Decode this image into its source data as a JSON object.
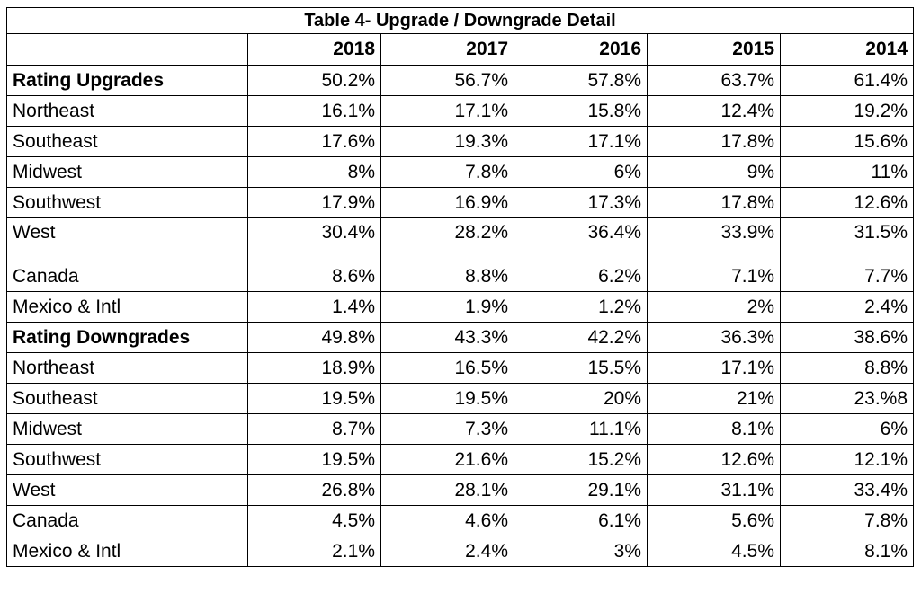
{
  "table": {
    "title": "Table 4- Upgrade / Downgrade Detail",
    "columns": [
      "2018",
      "2017",
      "2016",
      "2015",
      "2014"
    ],
    "rows": [
      {
        "label": "Rating Upgrades",
        "bold": true,
        "values": [
          "50.2%",
          "56.7%",
          "57.8%",
          "63.7%",
          "61.4%"
        ]
      },
      {
        "label": "Northeast",
        "values": [
          "16.1%",
          "17.1%",
          "15.8%",
          "12.4%",
          "19.2%"
        ]
      },
      {
        "label": "Southeast",
        "values": [
          "17.6%",
          "19.3%",
          "17.1%",
          "17.8%",
          "15.6%"
        ]
      },
      {
        "label": "Midwest",
        "values": [
          "8%",
          "7.8%",
          "6%",
          "9%",
          "11%"
        ]
      },
      {
        "label": "Southwest",
        "values": [
          "17.9%",
          "16.9%",
          "17.3%",
          "17.8%",
          "12.6%"
        ]
      },
      {
        "label": "West",
        "tall": true,
        "values": [
          "30.4%",
          "28.2%",
          "36.4%",
          "33.9%",
          "31.5%"
        ]
      },
      {
        "label": "Canada",
        "values": [
          "8.6%",
          "8.8%",
          "6.2%",
          "7.1%",
          "7.7%"
        ]
      },
      {
        "label": "Mexico & Intl",
        "values": [
          "1.4%",
          "1.9%",
          "1.2%",
          "2%",
          "2.4%"
        ]
      },
      {
        "label": "Rating Downgrades",
        "bold": true,
        "values": [
          "49.8%",
          "43.3%",
          "42.2%",
          "36.3%",
          "38.6%"
        ]
      },
      {
        "label": "Northeast",
        "values": [
          "18.9%",
          "16.5%",
          "15.5%",
          "17.1%",
          "8.8%"
        ]
      },
      {
        "label": "Southeast",
        "values": [
          "19.5%",
          "19.5%",
          "20%",
          "21%",
          "23.%8"
        ]
      },
      {
        "label": "Midwest",
        "values": [
          "8.7%",
          "7.3%",
          "11.1%",
          "8.1%",
          "6%"
        ]
      },
      {
        "label": "Southwest",
        "values": [
          "19.5%",
          "21.6%",
          "15.2%",
          "12.6%",
          "12.1%"
        ]
      },
      {
        "label": "West",
        "values": [
          "26.8%",
          "28.1%",
          "29.1%",
          "31.1%",
          "33.4%"
        ]
      },
      {
        "label": "Canada",
        "values": [
          "4.5%",
          "4.6%",
          "6.1%",
          "5.6%",
          "7.8%"
        ]
      },
      {
        "label": "Mexico & Intl",
        "values": [
          "2.1%",
          "2.4%",
          "3%",
          "4.5%",
          "8.1%"
        ]
      }
    ]
  }
}
